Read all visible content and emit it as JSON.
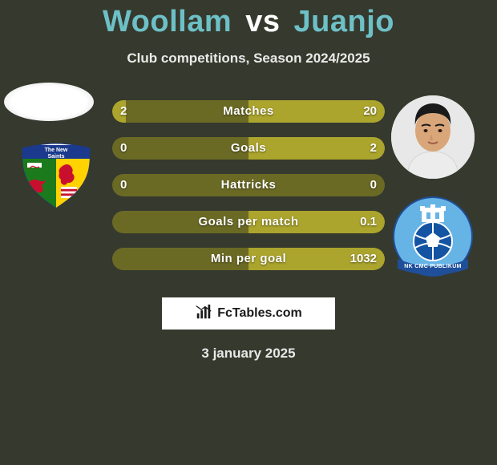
{
  "title": {
    "left": "Woollam",
    "vs": "vs",
    "right": "Juanjo",
    "left_color": "#6dc0c7",
    "right_color": "#6dc0c7",
    "vs_color": "#ffffff"
  },
  "subtitle": "Club competitions, Season 2024/2025",
  "avatars": {
    "left": {
      "type": "blank-ellipse",
      "fill": "#ffffff"
    },
    "right": {
      "type": "headshot",
      "skin": "#d9a67a",
      "hair": "#1a1a1a",
      "shirt": "#e8e8e8",
      "bg": "#e8e8e8"
    }
  },
  "clubs": {
    "left": {
      "name": "the-new-saints",
      "bg": "#ffffff",
      "banner": "#1b3a8d",
      "banner_text": "The New",
      "banner_text2": "Saints",
      "shield_left": "#1b7a1b",
      "shield_right": "#ffd200",
      "flag_stripes": [
        "#ffffff",
        "#c8102e",
        "#ffffff",
        "#c8102e",
        "#ffffff"
      ],
      "dragon": "#c8102e",
      "lion": "#c8102e"
    },
    "right": {
      "name": "nk-cmc-publikum",
      "bg": "#66b4e6",
      "castle": "#ffffff",
      "ball": "#1454a3",
      "ball_panels": "#ffffff",
      "ribbon": "#1f4f99",
      "ribbon_text": "NK CMC PUBLIKUM",
      "outline": "#1f4f99"
    }
  },
  "bars": {
    "track_color": "#6b6a25",
    "fill_color": "#aba42d",
    "rows": [
      {
        "label": "Matches",
        "left": "2",
        "right": "20",
        "left_pct": 5,
        "right_pct": 50
      },
      {
        "label": "Goals",
        "left": "0",
        "right": "2",
        "left_pct": 0,
        "right_pct": 50
      },
      {
        "label": "Hattricks",
        "left": "0",
        "right": "0",
        "left_pct": 0,
        "right_pct": 0
      },
      {
        "label": "Goals per match",
        "left": "",
        "right": "0.1",
        "left_pct": 0,
        "right_pct": 50
      },
      {
        "label": "Min per goal",
        "left": "",
        "right": "1032",
        "left_pct": 0,
        "right_pct": 50
      }
    ]
  },
  "logo": {
    "text": "FcTables.com",
    "icon": "bar-chart",
    "icon_color": "#1a1a1a"
  },
  "date": "3 january 2025",
  "colors": {
    "page_bg": "#36392d"
  }
}
